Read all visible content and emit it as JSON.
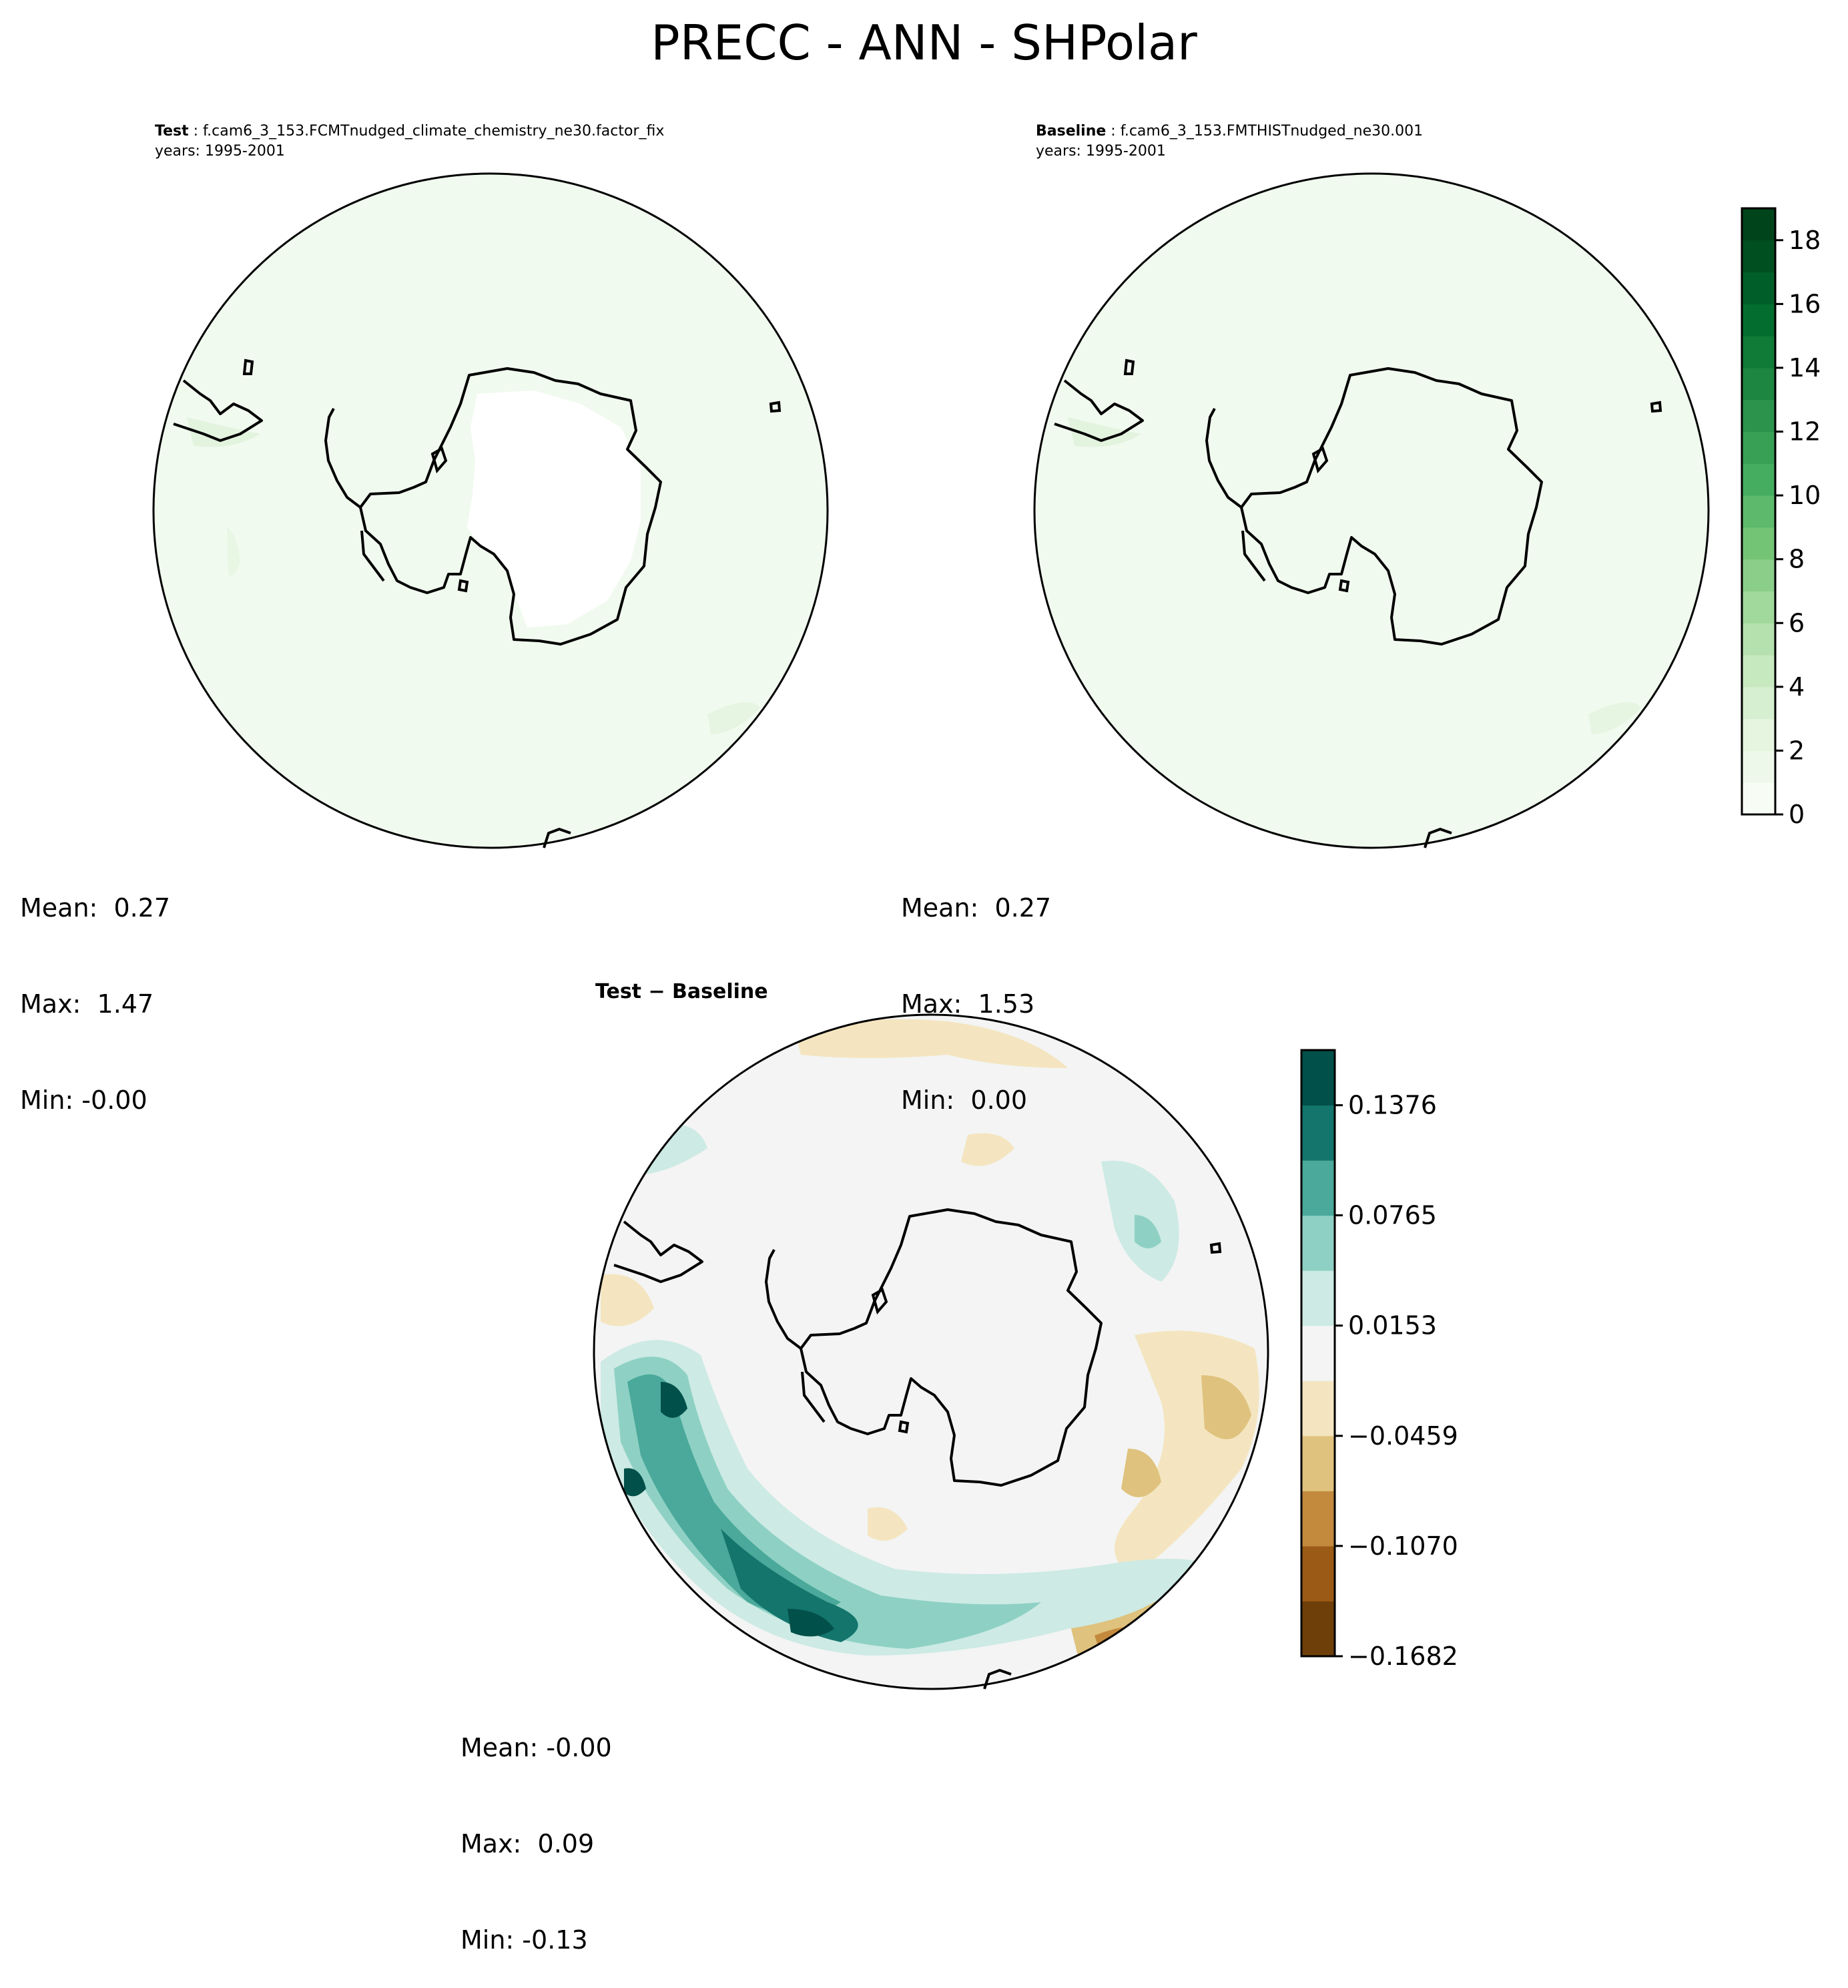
{
  "figure": {
    "title": "PRECC - ANN - SHPolar"
  },
  "panels": {
    "test": {
      "label": "Test",
      "case": "f.cam6_3_153.FCMTnudged_climate_chemistry_ne30.factor_fix",
      "years": "years: 1995-2001",
      "stats": {
        "mean": "Mean:  0.27",
        "max": "Max:  1.47",
        "min": "Min: -0.00"
      }
    },
    "baseline": {
      "label": "Baseline",
      "case": "f.cam6_3_153.FMTHISTnudged_ne30.001",
      "years": "years: 1995-2001",
      "stats": {
        "mean": "Mean:  0.27",
        "max": "Max:  1.53",
        "min": "Min:  0.00"
      }
    },
    "difference": {
      "title": "Test − Baseline",
      "stats": {
        "mean": "Mean: -0.00",
        "max": "Max:  0.09",
        "min": "Min: -0.13"
      }
    }
  },
  "chart_data": [
    {
      "type": "heatmap",
      "projection": "south-polar-stereographic",
      "panel": "test",
      "mean": 0.27,
      "max": 1.47,
      "min": -0.0,
      "field_color": "#f1faef"
    },
    {
      "type": "heatmap",
      "projection": "south-polar-stereographic",
      "panel": "baseline",
      "mean": 0.27,
      "max": 1.53,
      "min": 0.0,
      "field_color": "#f1faef"
    },
    {
      "type": "heatmap",
      "projection": "south-polar-stereographic",
      "panel": "difference",
      "mean": -0.0,
      "max": 0.09,
      "min": -0.13
    }
  ],
  "colorbars": {
    "main": {
      "range": [
        0,
        19
      ],
      "tick_values": [
        0,
        2,
        4,
        6,
        8,
        10,
        12,
        14,
        16,
        18
      ],
      "tick_labels": [
        "0",
        "2",
        "4",
        "6",
        "8",
        "10",
        "12",
        "14",
        "16",
        "18"
      ],
      "colors": [
        "#f7fcf5",
        "#eef8ea",
        "#e5f5e0",
        "#d6efd0",
        "#c7e9c0",
        "#b4e1ad",
        "#a0d99b",
        "#8bce8a",
        "#74c476",
        "#5db96b",
        "#45ad5f",
        "#37a055",
        "#2b934c",
        "#1d8641",
        "#107a37",
        "#036d2f",
        "#005f28",
        "#004f21",
        "#00441b"
      ]
    },
    "diff": {
      "range": [
        -0.1682,
        0.1682
      ],
      "tick_values": [
        -0.1682,
        -0.107,
        -0.0459,
        0.0153,
        0.0765,
        0.1376
      ],
      "tick_labels": [
        "−0.1682",
        "−0.1070",
        "−0.0459",
        "0.0153",
        "0.0765",
        "0.1376"
      ],
      "colors": [
        "#6f3f0a",
        "#9b5a16",
        "#c38a3e",
        "#dfc27d",
        "#f4e5c0",
        "#f3f4f3",
        "#cdeae4",
        "#8ed1c4",
        "#4aa99a",
        "#13756c",
        "#02504a"
      ]
    }
  }
}
